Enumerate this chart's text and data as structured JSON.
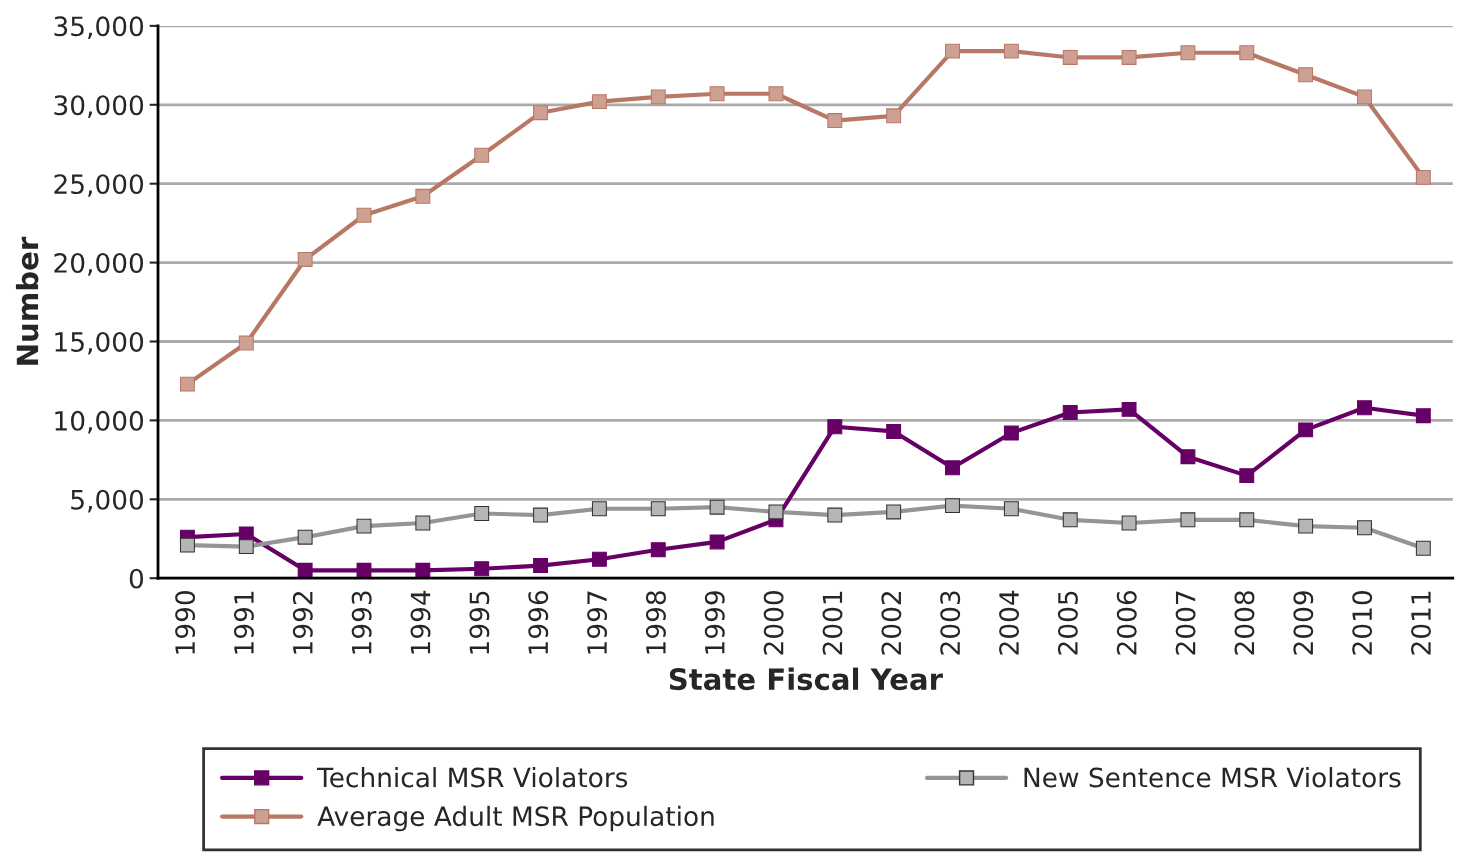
{
  "chart_data": {
    "type": "line",
    "xlabel": "State Fiscal Year",
    "ylabel": "Number",
    "categories": [
      "1990",
      "1991",
      "1992",
      "1993",
      "1994",
      "1995",
      "1996",
      "1997",
      "1998",
      "1999",
      "2000",
      "2001",
      "2002",
      "2003",
      "2004",
      "2005",
      "2006",
      "2007",
      "2008",
      "2009",
      "2010",
      "2011"
    ],
    "series": [
      {
        "name": "Technical MSR Violators",
        "color": "#660066",
        "values": [
          2600,
          2800,
          500,
          500,
          500,
          600,
          800,
          1200,
          1800,
          2300,
          3700,
          9600,
          9300,
          7000,
          9200,
          10500,
          10700,
          7700,
          6500,
          9400,
          10800,
          10300
        ]
      },
      {
        "name": "New Sentence MSR Violators",
        "color": "#939598",
        "values": [
          2100,
          2000,
          2600,
          3300,
          3500,
          4100,
          4000,
          4400,
          4400,
          4500,
          4200,
          4000,
          4200,
          4600,
          4400,
          3700,
          3500,
          3700,
          3700,
          3300,
          3200,
          1900
        ]
      },
      {
        "name": "Average Adult MSR Population",
        "color": "#b87865",
        "values": [
          12300,
          14900,
          20200,
          23000,
          24200,
          26800,
          29500,
          30200,
          30500,
          30700,
          30700,
          29000,
          29300,
          33400,
          33400,
          33000,
          33000,
          33300,
          33300,
          31900,
          30500,
          25400
        ]
      }
    ],
    "ylim": [
      0,
      35000
    ],
    "yticks": [
      {
        "value": 0,
        "label": "0"
      },
      {
        "value": 5000,
        "label": "5,000"
      },
      {
        "value": 10000,
        "label": "10,000"
      },
      {
        "value": 15000,
        "label": "15,000"
      },
      {
        "value": 20000,
        "label": "20,000"
      },
      {
        "value": 25000,
        "label": "25,000"
      },
      {
        "value": 30000,
        "label": "30,000"
      },
      {
        "value": 35000,
        "label": "35,000"
      }
    ],
    "grid": "y",
    "legend": "bottom",
    "marker": "square",
    "line_style": "solid"
  }
}
